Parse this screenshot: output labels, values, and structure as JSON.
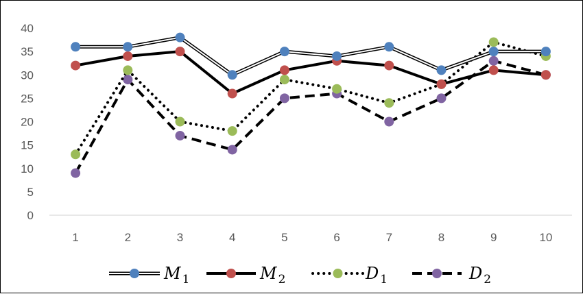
{
  "chart_data": {
    "type": "line",
    "title": "",
    "xlabel": "",
    "ylabel": "",
    "categories": [
      "1",
      "2",
      "3",
      "4",
      "5",
      "6",
      "7",
      "8",
      "9",
      "10"
    ],
    "ylim": [
      0,
      40
    ],
    "yticks": [
      0,
      5,
      10,
      15,
      20,
      25,
      30,
      35,
      40
    ],
    "grid": false,
    "legend_position": "bottom",
    "series": [
      {
        "id": "M1",
        "name": "M",
        "subscript": "1",
        "line_style": "double",
        "marker_color": "#4f81bd",
        "values": [
          36,
          36,
          38,
          30,
          35,
          34,
          36,
          31,
          35,
          35
        ]
      },
      {
        "id": "M2",
        "name": "M",
        "subscript": "2",
        "line_style": "solid-thick",
        "marker_color": "#c0504d",
        "values": [
          32,
          34,
          35,
          26,
          31,
          33,
          32,
          28,
          31,
          30
        ]
      },
      {
        "id": "D1",
        "name": "D",
        "subscript": "1",
        "line_style": "dotted",
        "marker_color": "#9bbb59",
        "values": [
          13,
          31,
          20,
          18,
          29,
          27,
          24,
          28,
          37,
          34
        ]
      },
      {
        "id": "D2",
        "name": "D",
        "subscript": "2",
        "line_style": "dashed",
        "marker_color": "#8064a2",
        "values": [
          9,
          29,
          17,
          14,
          25,
          26,
          20,
          25,
          33,
          30
        ]
      }
    ]
  }
}
